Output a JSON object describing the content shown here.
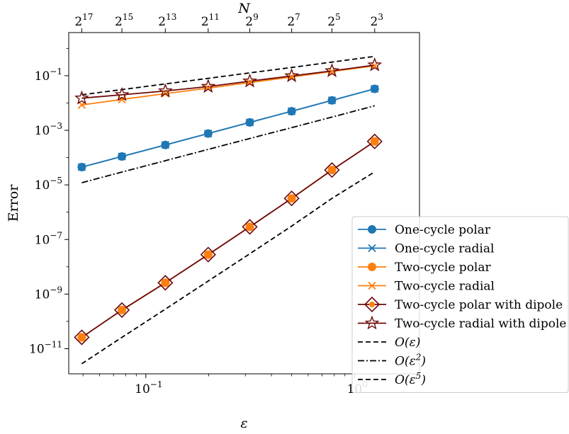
{
  "chart_data": {
    "type": "line",
    "xlabel": "ε",
    "ylabel": "Error",
    "top_xlabel": "N",
    "xscale": "log",
    "yscale": "log",
    "xlim": [
      0.0427,
      2.05
    ],
    "ylim": [
      1.2e-12,
      3.8
    ],
    "x_ticks": [
      {
        "value": 0.1,
        "base": "10",
        "exp": "−1"
      },
      {
        "value": 1.0,
        "base": "10",
        "exp": "0"
      }
    ],
    "y_ticks": [
      {
        "value": 1e-11,
        "base": "10",
        "exp": "−11"
      },
      {
        "value": 1e-09,
        "base": "10",
        "exp": "−9"
      },
      {
        "value": 1e-07,
        "base": "10",
        "exp": "−7"
      },
      {
        "value": 1e-05,
        "base": "10",
        "exp": "−5"
      },
      {
        "value": 0.001,
        "base": "10",
        "exp": "−3"
      },
      {
        "value": 0.1,
        "base": "10",
        "exp": "−1"
      }
    ],
    "top_ticks": [
      {
        "value": 0.0493,
        "base": "2",
        "exp": "17"
      },
      {
        "value": 0.0768,
        "base": "2",
        "exp": "15"
      },
      {
        "value": 0.124,
        "base": "2",
        "exp": "13"
      },
      {
        "value": 0.199,
        "base": "2",
        "exp": "11"
      },
      {
        "value": 0.315,
        "base": "2",
        "exp": "9"
      },
      {
        "value": 0.5,
        "base": "2",
        "exp": "7"
      },
      {
        "value": 0.78,
        "base": "2",
        "exp": "5"
      },
      {
        "value": 1.25,
        "base": "2",
        "exp": "3"
      }
    ],
    "x": [
      0.0493,
      0.0768,
      0.124,
      0.199,
      0.315,
      0.5,
      0.78,
      1.25
    ],
    "series": [
      {
        "name": "One-cycle polar",
        "color": "#1f77b4",
        "marker": "circle",
        "linestyle": "solid",
        "values": [
          4.5e-05,
          0.00011,
          0.00029,
          0.00076,
          0.00195,
          0.005,
          0.0125,
          0.033
        ]
      },
      {
        "name": "One-cycle radial",
        "color": "#1f77b4",
        "marker": "x",
        "linestyle": "solid",
        "values": [
          4.5e-05,
          0.00011,
          0.00029,
          0.00076,
          0.00195,
          0.005,
          0.0125,
          0.033
        ]
      },
      {
        "name": "Two-cycle polar",
        "color": "#ff7f0e",
        "marker": "circle",
        "linestyle": "solid",
        "values": [
          2.6e-11,
          2.6e-10,
          2.6e-09,
          2.8e-08,
          2.9e-07,
          3.2e-06,
          3.5e-05,
          0.00039
        ]
      },
      {
        "name": "Two-cycle radial",
        "color": "#ff7f0e",
        "marker": "x",
        "linestyle": "solid",
        "values": [
          0.0085,
          0.0135,
          0.022,
          0.035,
          0.056,
          0.09,
          0.142,
          0.23
        ]
      },
      {
        "name": "Two-cycle polar with dipole",
        "color": "#6b0a0a",
        "marker": "diamond",
        "linestyle": "solid",
        "values": [
          2.6e-11,
          2.6e-10,
          2.6e-09,
          2.8e-08,
          2.9e-07,
          3.2e-06,
          3.5e-05,
          0.00039
        ]
      },
      {
        "name": "Two-cycle radial with dipole",
        "color": "#6b0a0a",
        "marker": "star",
        "linestyle": "solid",
        "values": [
          0.015,
          0.02,
          0.0275,
          0.04,
          0.063,
          0.098,
          0.15,
          0.245
        ]
      }
    ],
    "reference_lines": [
      {
        "name": "O(ε)",
        "label_base": "O(ε",
        "label_exp": "",
        "linestyle": "dashed",
        "color": "#000000",
        "values": [
          0.02,
          0.031,
          0.05,
          0.08,
          0.127,
          0.2,
          0.315,
          0.51
        ]
      },
      {
        "name": "O(ε²)",
        "label_base": "O(ε",
        "label_exp": "2",
        "linestyle": "dashdot",
        "color": "#000000",
        "values": [
          1.2e-05,
          2.95e-05,
          7.7e-05,
          0.0002,
          0.0005,
          0.00125,
          0.00305,
          0.0079
        ]
      },
      {
        "name": "O(ε⁵)",
        "label_base": "O(ε",
        "label_exp": "5",
        "linestyle": "dashed",
        "color": "#000000",
        "values": [
          2.8e-12,
          2.6e-11,
          2.8e-10,
          3e-09,
          3e-08,
          3.1e-07,
          3.2e-06,
          3e-05
        ]
      }
    ],
    "legend": {
      "placement": "lower right"
    },
    "grid": false
  }
}
